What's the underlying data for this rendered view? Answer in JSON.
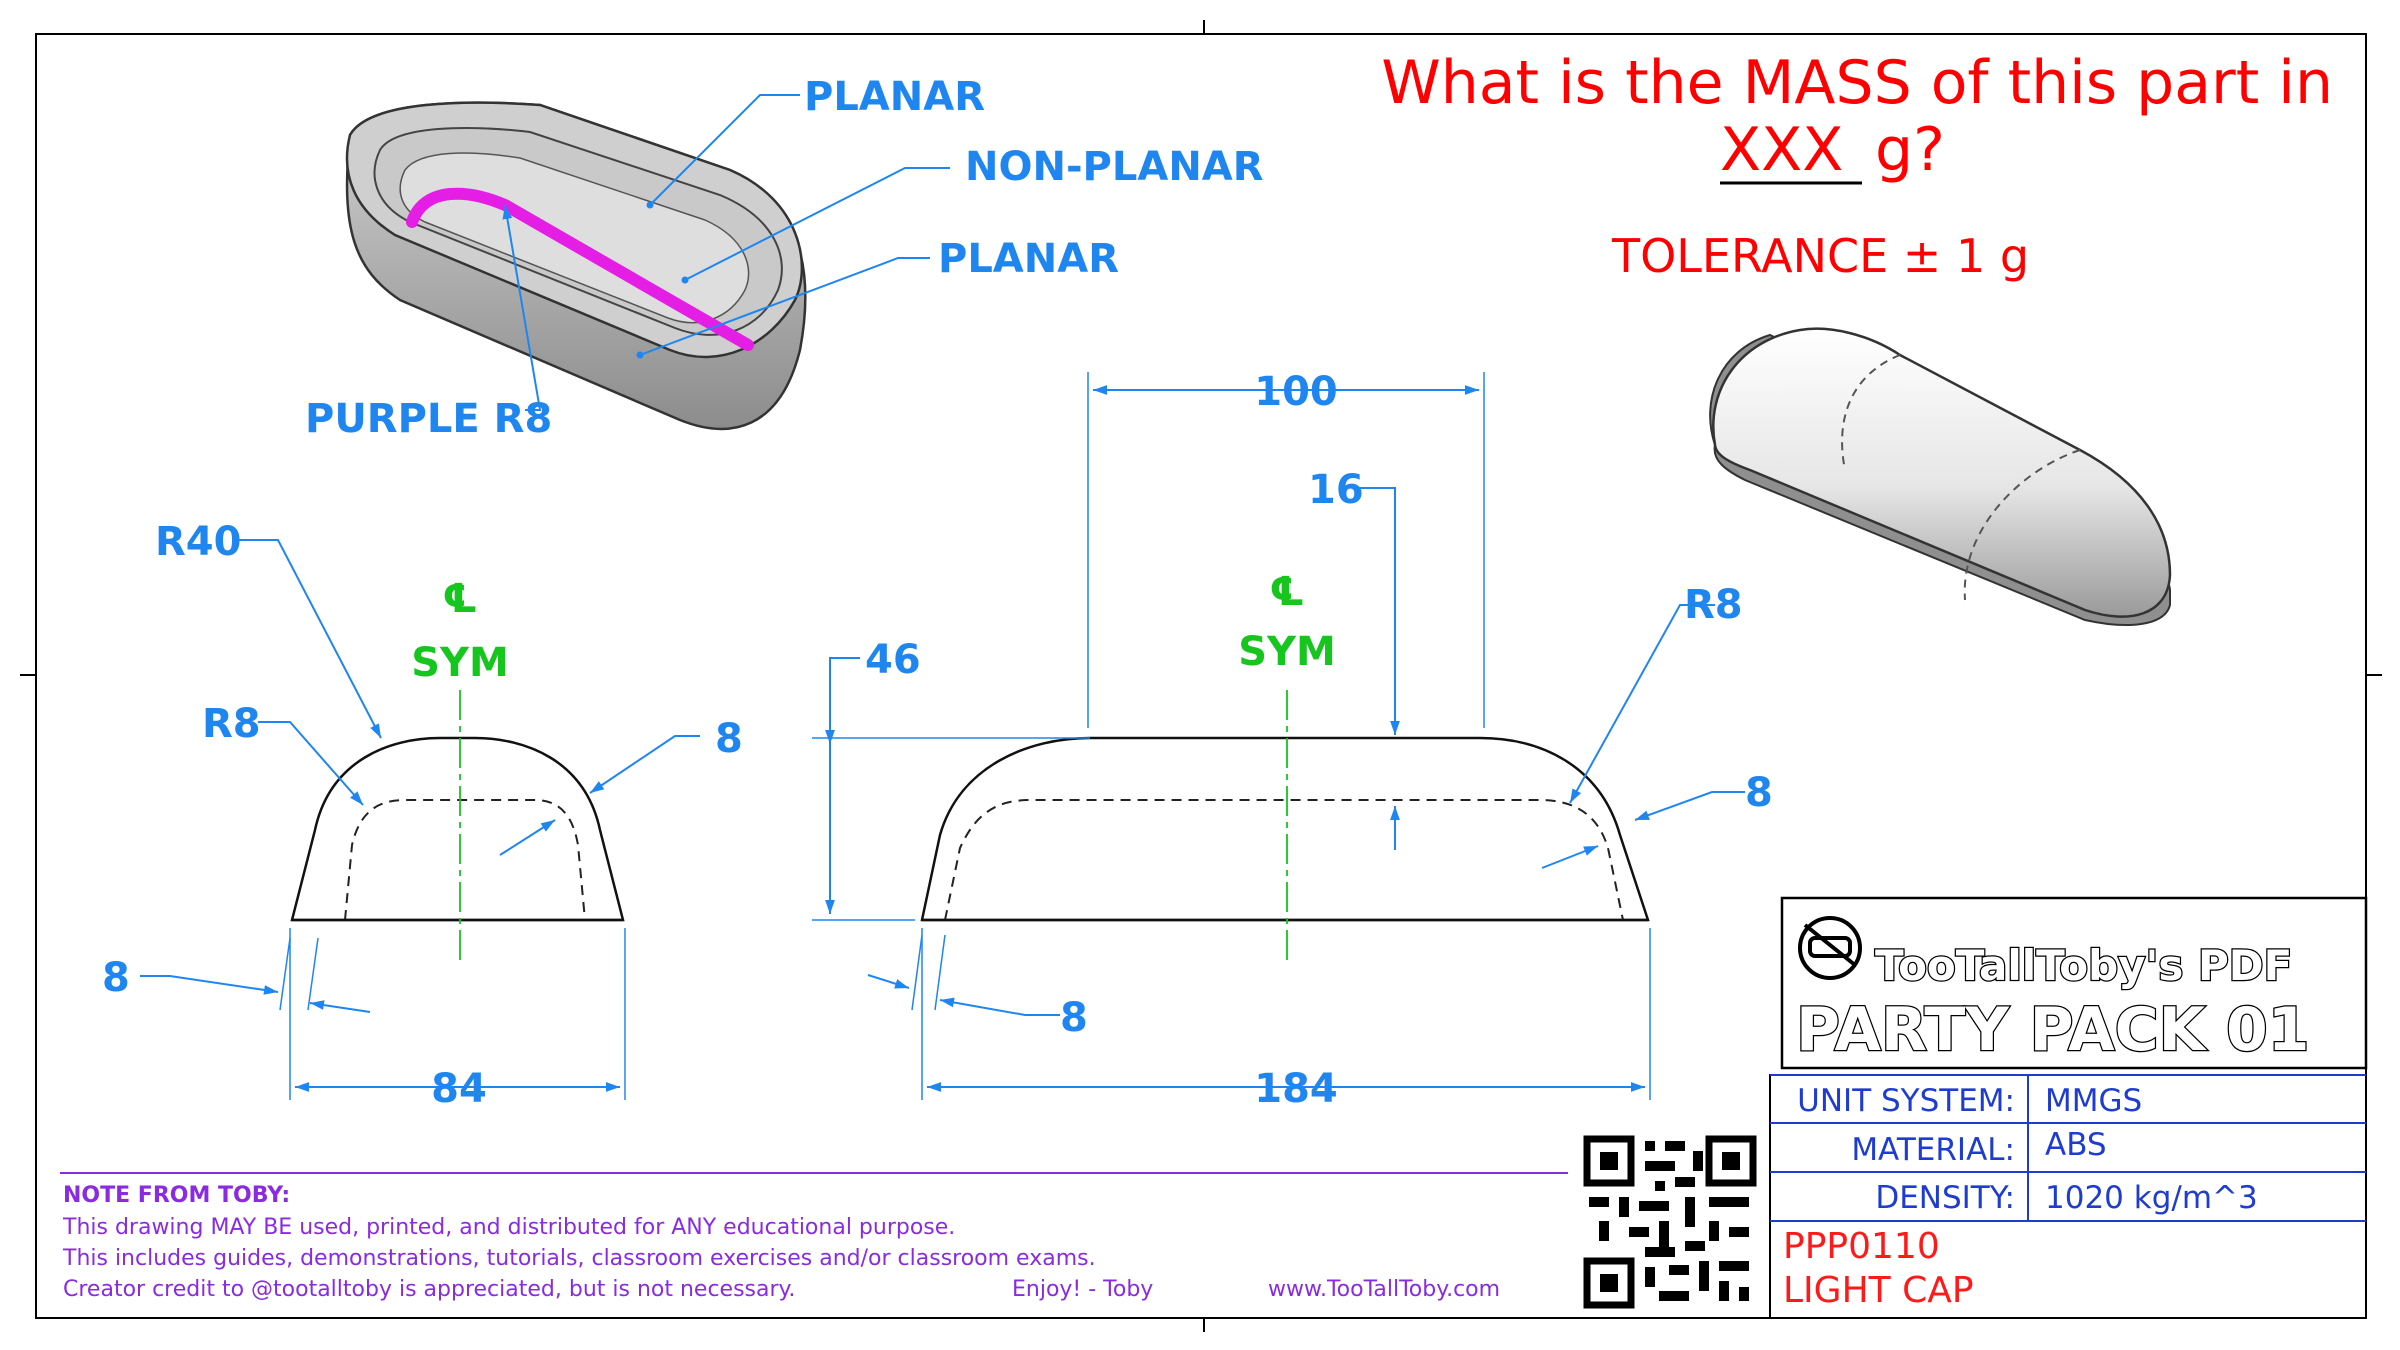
{
  "question": {
    "line1": "What is the MASS of this part in",
    "underlined": "XXX",
    "unit_suffix": "g?",
    "tolerance": "TOLERANCE ± 1 g"
  },
  "callouts": {
    "planar_top": "PLANAR",
    "non_planar": "NON-PLANAR",
    "planar_bottom": "PLANAR",
    "purple": "PURPLE R8"
  },
  "dimensions": {
    "front": {
      "r40": "R40",
      "r8": "R8",
      "thk_right": "8",
      "thk_left": "8",
      "width": "84",
      "cl": "℄",
      "sym": "SYM"
    },
    "side": {
      "top_len": "100",
      "wall_top": "16",
      "height": "46",
      "r8": "R8",
      "thk_right": "8",
      "thk_bottom": "8",
      "length": "184",
      "cl": "℄",
      "sym": "SYM"
    }
  },
  "note": {
    "heading": "NOTE FROM TOBY:",
    "lines": [
      "This drawing MAY BE used, printed, and distributed for ANY educational purpose.",
      "This includes guides, demonstrations, tutorials, classroom exercises and/or classroom exams.",
      "Creator credit to @tootalltoby is appreciated, but is not necessary."
    ],
    "signoff": "Enjoy! - Toby",
    "website": "www.TooTallToby.com"
  },
  "title_block": {
    "brand": "TooTallToby's PDF",
    "pack": "PARTY PACK 01",
    "unit_label": "UNIT SYSTEM:",
    "unit_value": "MMGS",
    "material_label": "MATERIAL:",
    "material_value": "ABS",
    "density_label": "DENSITY:",
    "density_value": "1020  kg/m^3",
    "part_number": "PPP0110",
    "part_name": "LIGHT CAP"
  },
  "colors": {
    "dimension": "#1f86f0",
    "symmetry": "#16c51e",
    "question": "#ff0000",
    "note": "#8a2be2",
    "highlight": "#e51ee5"
  }
}
